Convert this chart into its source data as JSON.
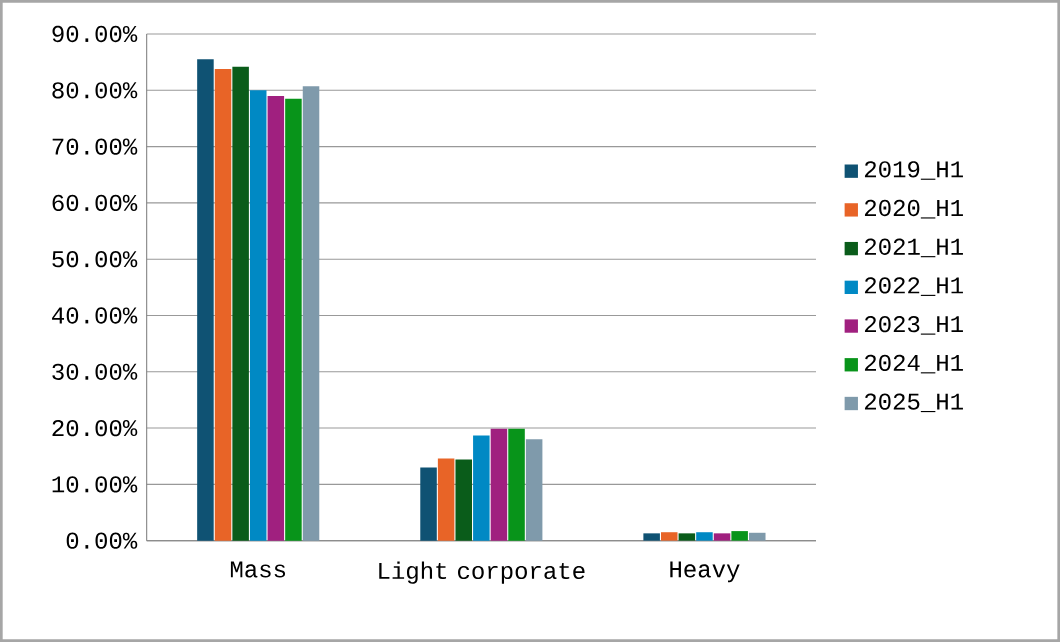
{
  "chart_data": {
    "type": "bar",
    "categories": [
      "Mass",
      "Light corporate",
      "Heavy"
    ],
    "series": [
      {
        "name": "2019_H1",
        "color": "#0f5273",
        "values": [
          85.5,
          13.0,
          1.3
        ]
      },
      {
        "name": "2020_H1",
        "color": "#e86427",
        "values": [
          83.8,
          14.6,
          1.5
        ]
      },
      {
        "name": "2021_H1",
        "color": "#0a5c1a",
        "values": [
          84.2,
          14.4,
          1.3
        ]
      },
      {
        "name": "2022_H1",
        "color": "#0089c4",
        "values": [
          80.0,
          18.7,
          1.5
        ]
      },
      {
        "name": "2023_H1",
        "color": "#a0207f",
        "values": [
          79.0,
          19.9,
          1.3
        ]
      },
      {
        "name": "2024_H1",
        "color": "#08941a",
        "values": [
          78.5,
          19.9,
          1.7
        ]
      },
      {
        "name": "2025_H1",
        "color": "#7f9aab",
        "values": [
          80.7,
          18.0,
          1.4
        ]
      }
    ],
    "ylim": [
      0,
      90
    ],
    "yticks": [
      {
        "value": 0,
        "label": "0.00%"
      },
      {
        "value": 10,
        "label": "10.00%"
      },
      {
        "value": 20,
        "label": "20.00%"
      },
      {
        "value": 30,
        "label": "30.00%"
      },
      {
        "value": 40,
        "label": "40.00%"
      },
      {
        "value": 50,
        "label": "50.00%"
      },
      {
        "value": 60,
        "label": "60.00%"
      },
      {
        "value": 70,
        "label": "70.00%"
      },
      {
        "value": 80,
        "label": "80.00%"
      },
      {
        "value": 90,
        "label": "90.00%"
      }
    ],
    "grid": "y",
    "legend": "right"
  }
}
